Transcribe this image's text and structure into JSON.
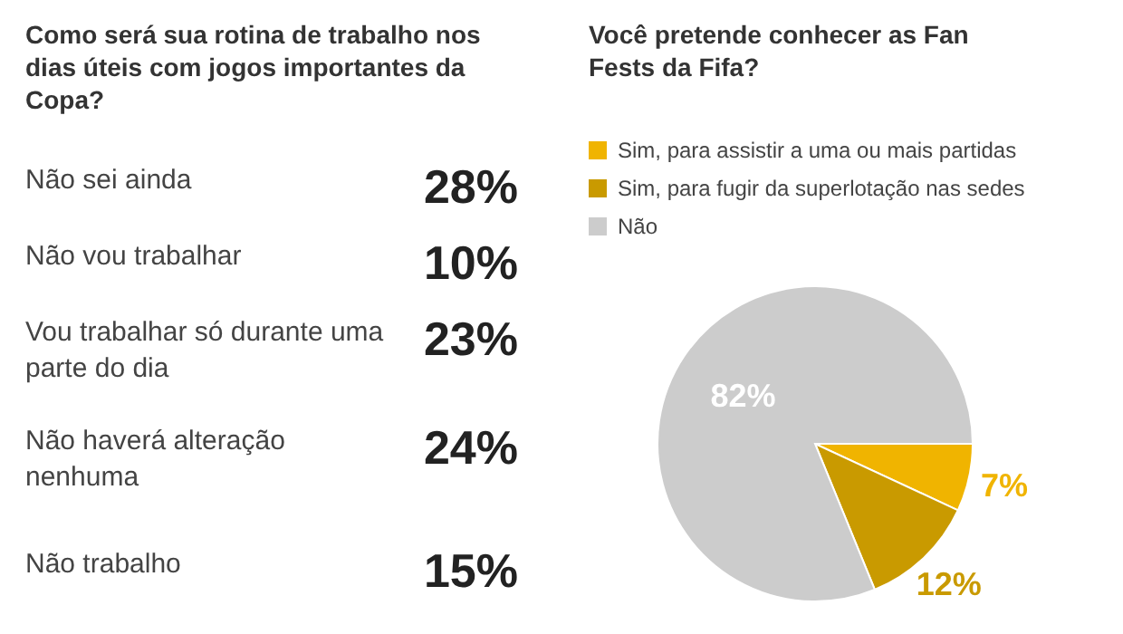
{
  "chart_data": [
    {
      "type": "other",
      "title": "Como será sua rotina de trabalho nos dias úteis com jogos importantes da Copa?",
      "categories": [
        "Não sei ainda",
        "Não vou trabalhar",
        "Vou trabalhar só durante uma parte do dia",
        "Não haverá alteração nenhuma",
        "Não trabalho"
      ],
      "values": [
        28,
        10,
        23,
        24,
        15
      ],
      "value_labels": [
        "28%",
        "10%",
        "23%",
        "24%",
        "15%"
      ]
    },
    {
      "type": "pie",
      "title": "Você pretende conhecer as Fan Fests da Fifa?",
      "categories": [
        "Sim, para assistir a uma ou mais partidas",
        "Sim, para fugir da superlotação nas sedes",
        "Não"
      ],
      "values": [
        7,
        12,
        82
      ],
      "colors": [
        "#f0b400",
        "#c99a00",
        "#cccccc"
      ],
      "value_labels": [
        "7%",
        "12%",
        "82%"
      ],
      "legend": "top left"
    }
  ]
}
